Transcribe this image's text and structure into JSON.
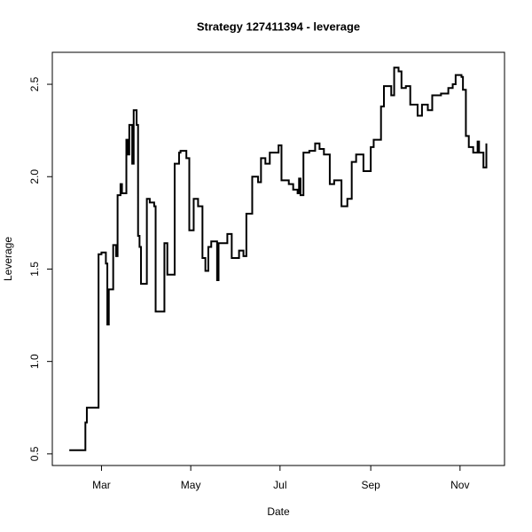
{
  "chart_data": {
    "type": "step",
    "title": "Strategy 127411394 - leverage",
    "xlabel": "Date",
    "ylabel": "Leverage",
    "color": "#000000",
    "x": [
      -22,
      -11,
      -10,
      -2,
      0,
      3,
      4,
      5,
      8,
      10,
      11,
      13,
      14,
      17,
      18,
      19,
      21,
      22,
      24,
      25,
      26,
      27,
      31,
      33,
      36,
      37,
      43,
      45,
      50,
      53,
      54,
      58,
      60,
      63,
      66,
      69,
      71,
      73,
      75,
      79,
      80,
      86,
      89,
      94,
      97,
      99,
      103,
      107,
      109,
      112,
      115,
      121,
      123,
      128,
      131,
      134,
      135,
      136,
      138,
      142,
      146,
      149,
      152,
      156,
      159,
      164,
      168,
      171,
      174,
      179,
      184,
      186,
      191,
      193,
      198,
      200,
      203,
      205,
      208,
      211,
      216,
      219,
      223,
      226,
      232,
      237,
      240,
      242,
      246,
      247,
      249,
      251,
      254,
      257,
      258,
      261,
      263
    ],
    "values": [
      0.52,
      0.67,
      0.75,
      1.58,
      1.59,
      1.53,
      1.2,
      1.39,
      1.63,
      1.57,
      1.9,
      1.96,
      1.91,
      2.2,
      2.12,
      2.28,
      2.07,
      2.36,
      2.28,
      1.68,
      1.62,
      1.42,
      1.88,
      1.86,
      1.84,
      1.27,
      1.64,
      1.47,
      2.07,
      2.13,
      2.14,
      2.1,
      1.71,
      1.88,
      1.84,
      1.56,
      1.49,
      1.62,
      1.65,
      1.44,
      1.64,
      1.69,
      1.56,
      1.6,
      1.57,
      1.8,
      2.0,
      1.97,
      2.1,
      2.07,
      2.13,
      2.17,
      1.98,
      1.96,
      1.93,
      1.91,
      1.99,
      1.9,
      2.13,
      2.14,
      2.18,
      2.15,
      2.12,
      1.96,
      1.98,
      1.84,
      1.88,
      2.08,
      2.12,
      2.03,
      2.16,
      2.2,
      2.38,
      2.49,
      2.44,
      2.59,
      2.57,
      2.48,
      2.49,
      2.39,
      2.33,
      2.39,
      2.36,
      2.44,
      2.45,
      2.48,
      2.5,
      2.55,
      2.54,
      2.47,
      2.22,
      2.16,
      2.13,
      2.19,
      2.13,
      2.05,
      2.18
    ],
    "xlim": [
      -33.6,
      275.4
    ],
    "ylim": [
      0.437,
      2.673
    ],
    "xticks": [
      {
        "value": 0,
        "label": "Mar"
      },
      {
        "value": 61,
        "label": "May"
      },
      {
        "value": 122,
        "label": "Jul"
      },
      {
        "value": 184,
        "label": "Sep"
      },
      {
        "value": 245,
        "label": "Nov"
      }
    ],
    "yticks": [
      {
        "value": 0.5,
        "label": "0.5"
      },
      {
        "value": 1,
        "label": "1.0"
      },
      {
        "value": 1.5,
        "label": "1.5"
      },
      {
        "value": 2,
        "label": "2.0"
      },
      {
        "value": 2.5,
        "label": "2.5"
      }
    ]
  }
}
